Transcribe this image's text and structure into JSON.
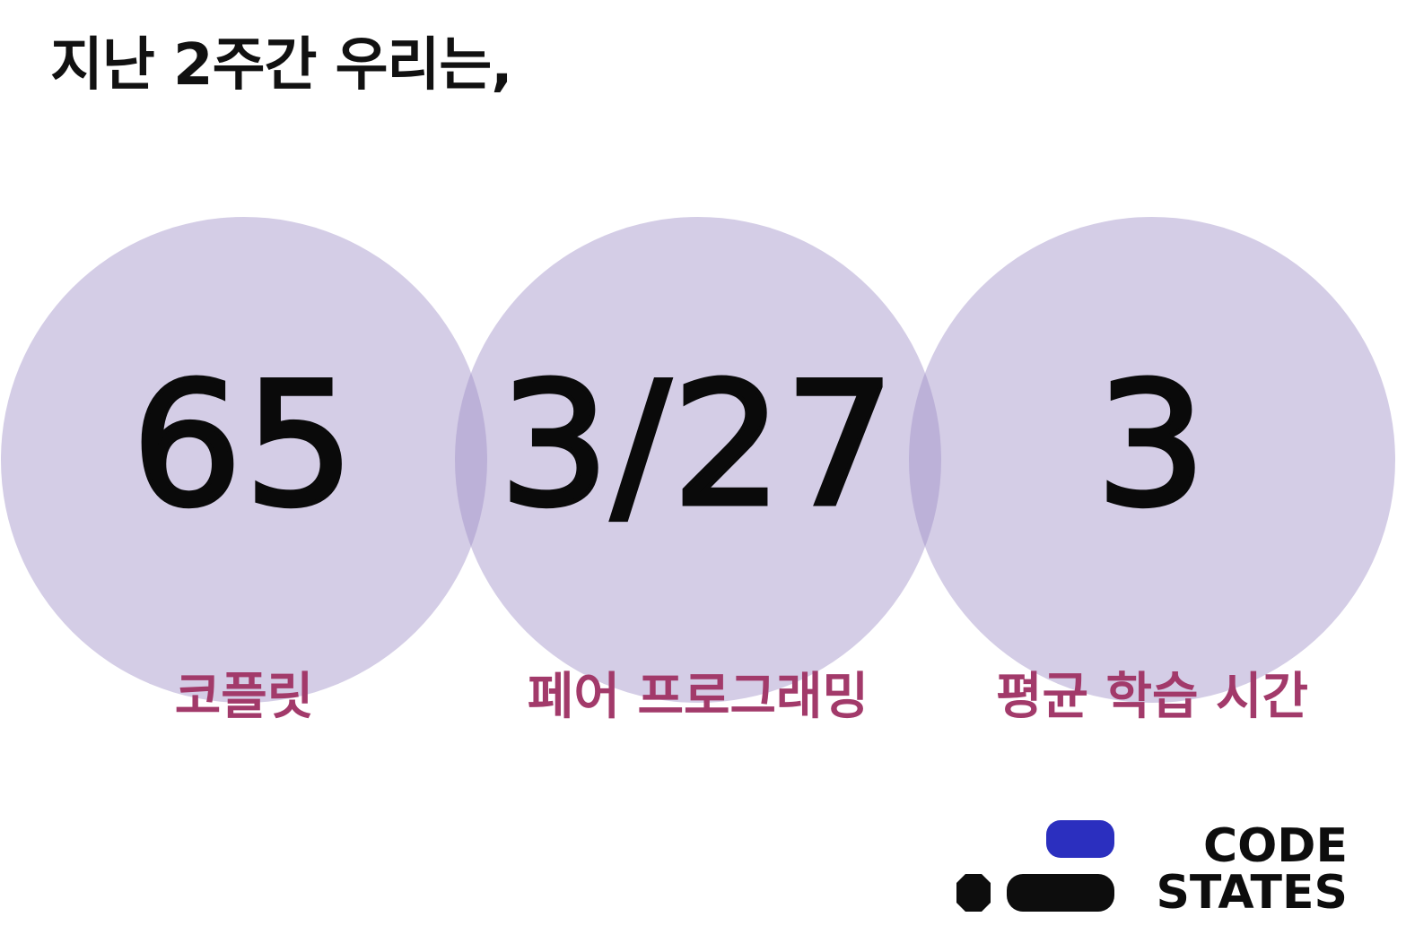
{
  "heading": "지난 2주간 우리는,",
  "stats": [
    {
      "value": "65",
      "label": "코플릿"
    },
    {
      "value": "3/27",
      "label": "페어 프로그래밍"
    },
    {
      "value": "3",
      "label": "평균 학습 시간"
    }
  ],
  "colors": {
    "circle": "#d3cde6",
    "value_text": "#0a0a0a",
    "label_text": "#a23a6a",
    "logo_accent": "#2b2fbf",
    "logo_dark": "#0d0d0d"
  },
  "logo": {
    "line1": "CODE",
    "line2": "STATES"
  }
}
